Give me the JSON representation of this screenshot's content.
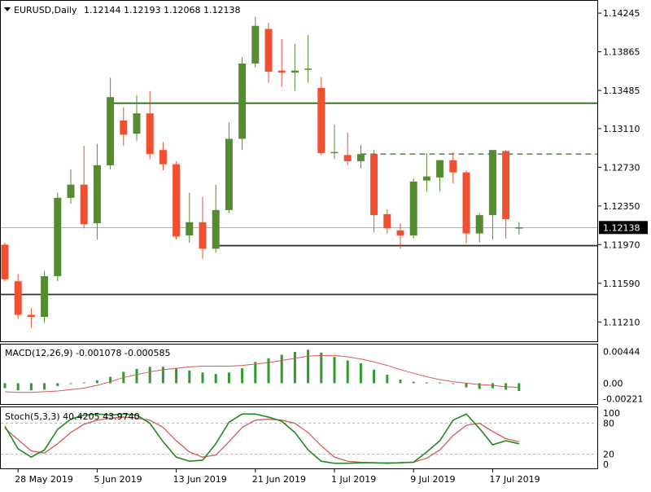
{
  "header": {
    "symbol": "EURUSD,Daily",
    "ohlc": "1.12144 1.12193 1.12068 1.12138"
  },
  "chart_data": {
    "type": "candlestick",
    "price_axis": {
      "ylim": [
        1.1106,
        1.1431
      ],
      "ticks": [
        "1.14245",
        "1.13865",
        "1.13485",
        "1.13110",
        "1.12730",
        "1.12350",
        "1.11970",
        "1.11590",
        "1.11210"
      ],
      "current_price": "1.12138"
    },
    "x_labels": [
      {
        "label": "28 May 2019",
        "index": 1
      },
      {
        "label": "5 Jun 2019",
        "index": 7
      },
      {
        "label": "13 Jun 2019",
        "index": 13
      },
      {
        "label": "21 Jun 2019",
        "index": 19
      },
      {
        "label": "1 Jul 2019",
        "index": 25
      },
      {
        "label": "9 Jul 2019",
        "index": 31
      },
      {
        "label": "17 Jul 2019",
        "index": 37
      }
    ],
    "colors": {
      "bull": "#548c2f",
      "bear": "#f05030",
      "resistance": "#2e6b1e",
      "support": "#333333",
      "dashed": "#2e6b1e",
      "current": "#808080"
    },
    "candles": [
      {
        "o": 1.1197,
        "h": 1.1199,
        "l": 1.1161,
        "c": 1.1163
      },
      {
        "o": 1.1161,
        "h": 1.1168,
        "l": 1.1124,
        "c": 1.1128
      },
      {
        "o": 1.1128,
        "h": 1.1135,
        "l": 1.1115,
        "c": 1.1126
      },
      {
        "o": 1.1126,
        "h": 1.1171,
        "l": 1.112,
        "c": 1.1166
      },
      {
        "o": 1.1166,
        "h": 1.1248,
        "l": 1.1161,
        "c": 1.1243
      },
      {
        "o": 1.1243,
        "h": 1.1271,
        "l": 1.1237,
        "c": 1.1256
      },
      {
        "o": 1.1256,
        "h": 1.1294,
        "l": 1.1213,
        "c": 1.1217
      },
      {
        "o": 1.1218,
        "h": 1.1296,
        "l": 1.1202,
        "c": 1.1275
      },
      {
        "o": 1.1275,
        "h": 1.1361,
        "l": 1.1271,
        "c": 1.1342
      },
      {
        "o": 1.1319,
        "h": 1.1332,
        "l": 1.1294,
        "c": 1.1305
      },
      {
        "o": 1.1306,
        "h": 1.1344,
        "l": 1.1299,
        "c": 1.1326
      },
      {
        "o": 1.1326,
        "h": 1.1348,
        "l": 1.1281,
        "c": 1.1286
      },
      {
        "o": 1.129,
        "h": 1.1298,
        "l": 1.127,
        "c": 1.1276
      },
      {
        "o": 1.1276,
        "h": 1.1279,
        "l": 1.1202,
        "c": 1.1205
      },
      {
        "o": 1.1206,
        "h": 1.1248,
        "l": 1.1199,
        "c": 1.1219
      },
      {
        "o": 1.1219,
        "h": 1.1244,
        "l": 1.1183,
        "c": 1.1193
      },
      {
        "o": 1.1193,
        "h": 1.1256,
        "l": 1.1189,
        "c": 1.1231
      },
      {
        "o": 1.1231,
        "h": 1.1317,
        "l": 1.1228,
        "c": 1.1301
      },
      {
        "o": 1.1301,
        "h": 1.1381,
        "l": 1.129,
        "c": 1.1375
      },
      {
        "o": 1.1375,
        "h": 1.1421,
        "l": 1.1371,
        "c": 1.1412
      },
      {
        "o": 1.1409,
        "h": 1.1415,
        "l": 1.1356,
        "c": 1.1367
      },
      {
        "o": 1.1368,
        "h": 1.1399,
        "l": 1.1352,
        "c": 1.1366
      },
      {
        "o": 1.1366,
        "h": 1.1394,
        "l": 1.1348,
        "c": 1.1368
      },
      {
        "o": 1.1369,
        "h": 1.1403,
        "l": 1.1356,
        "c": 1.137
      },
      {
        "o": 1.1351,
        "h": 1.1362,
        "l": 1.1285,
        "c": 1.1287
      },
      {
        "o": 1.1287,
        "h": 1.1315,
        "l": 1.1281,
        "c": 1.1288
      },
      {
        "o": 1.1285,
        "h": 1.1307,
        "l": 1.1275,
        "c": 1.1279
      },
      {
        "o": 1.1279,
        "h": 1.1295,
        "l": 1.1272,
        "c": 1.1286
      },
      {
        "o": 1.1286,
        "h": 1.129,
        "l": 1.1209,
        "c": 1.1226
      },
      {
        "o": 1.1227,
        "h": 1.1232,
        "l": 1.1208,
        "c": 1.1213
      },
      {
        "o": 1.1211,
        "h": 1.1218,
        "l": 1.1193,
        "c": 1.1206
      },
      {
        "o": 1.1206,
        "h": 1.1262,
        "l": 1.1203,
        "c": 1.1259
      },
      {
        "o": 1.126,
        "h": 1.1287,
        "l": 1.1249,
        "c": 1.1264
      },
      {
        "o": 1.1263,
        "h": 1.128,
        "l": 1.1249,
        "c": 1.128
      },
      {
        "o": 1.128,
        "h": 1.1288,
        "l": 1.1257,
        "c": 1.1268
      },
      {
        "o": 1.1268,
        "h": 1.127,
        "l": 1.1198,
        "c": 1.1208
      },
      {
        "o": 1.1208,
        "h": 1.1228,
        "l": 1.1199,
        "c": 1.1226
      },
      {
        "o": 1.1226,
        "h": 1.1287,
        "l": 1.1202,
        "c": 1.129
      },
      {
        "o": 1.1289,
        "h": 1.129,
        "l": 1.1203,
        "c": 1.1222
      },
      {
        "o": 1.1214,
        "h": 1.1219,
        "l": 1.1207,
        "c": 1.1214
      }
    ],
    "levels": [
      {
        "kind": "resistance",
        "value": 1.1336,
        "start": 8
      },
      {
        "kind": "dashed",
        "value": 1.1286,
        "start": 27
      },
      {
        "kind": "support",
        "value": 1.1196,
        "start": 16
      },
      {
        "kind": "support",
        "value": 1.1148,
        "start": 0
      }
    ],
    "macd": {
      "label": "MACD(12,26,9) -0.001078 -0.000585",
      "ylim": [
        -0.0027,
        0.0052
      ],
      "ticks": [
        "0.00444",
        "0.00",
        "-0.00221"
      ],
      "histogram": [
        -0.0007,
        -0.001,
        -0.001,
        -0.0009,
        -0.0004,
        0.0,
        0.0001,
        0.0004,
        0.0009,
        0.0016,
        0.002,
        0.0023,
        0.0023,
        0.0021,
        0.0018,
        0.0015,
        0.0013,
        0.0015,
        0.0021,
        0.003,
        0.0035,
        0.004,
        0.0044,
        0.0047,
        0.0043,
        0.0037,
        0.0032,
        0.0028,
        0.0019,
        0.0012,
        0.0005,
        0.0002,
        0.0001,
        0.0001,
        0.0,
        -0.0006,
        -0.0008,
        -0.0007,
        -0.0009,
        -0.0011
      ],
      "signal": [
        -0.0012,
        -0.0013,
        -0.0013,
        -0.0012,
        -0.0011,
        -0.0009,
        -0.0007,
        -0.0003,
        0.0002,
        0.0008,
        0.0012,
        0.0016,
        0.0019,
        0.0021,
        0.0023,
        0.0024,
        0.0024,
        0.0024,
        0.0025,
        0.0027,
        0.0029,
        0.0032,
        0.0035,
        0.0038,
        0.0039,
        0.0039,
        0.0037,
        0.0034,
        0.003,
        0.0025,
        0.0019,
        0.0014,
        0.0009,
        0.0005,
        0.0002,
        0.0,
        -0.0002,
        -0.0003,
        -0.0005,
        -0.0006
      ]
    },
    "stoch": {
      "label": "Stoch(5,3,3) 40.4205 43.9740",
      "ylim": [
        0,
        100
      ],
      "ticks": [
        "100",
        "80",
        "20",
        "0"
      ],
      "levels": [
        80,
        20
      ],
      "main": [
        74,
        30,
        14,
        28,
        68,
        88,
        96,
        98,
        96,
        98,
        96,
        80,
        44,
        14,
        6,
        8,
        40,
        82,
        98,
        98,
        92,
        84,
        62,
        28,
        6,
        2,
        2,
        3,
        3,
        2,
        3,
        4,
        24,
        46,
        86,
        98,
        70,
        38,
        46,
        40
      ],
      "signal": [
        70,
        48,
        26,
        22,
        40,
        62,
        78,
        86,
        90,
        92,
        90,
        86,
        72,
        46,
        24,
        14,
        18,
        44,
        72,
        86,
        88,
        86,
        80,
        62,
        36,
        14,
        6,
        4,
        3,
        3,
        3,
        4,
        12,
        28,
        56,
        76,
        80,
        64,
        50,
        44
      ]
    }
  }
}
